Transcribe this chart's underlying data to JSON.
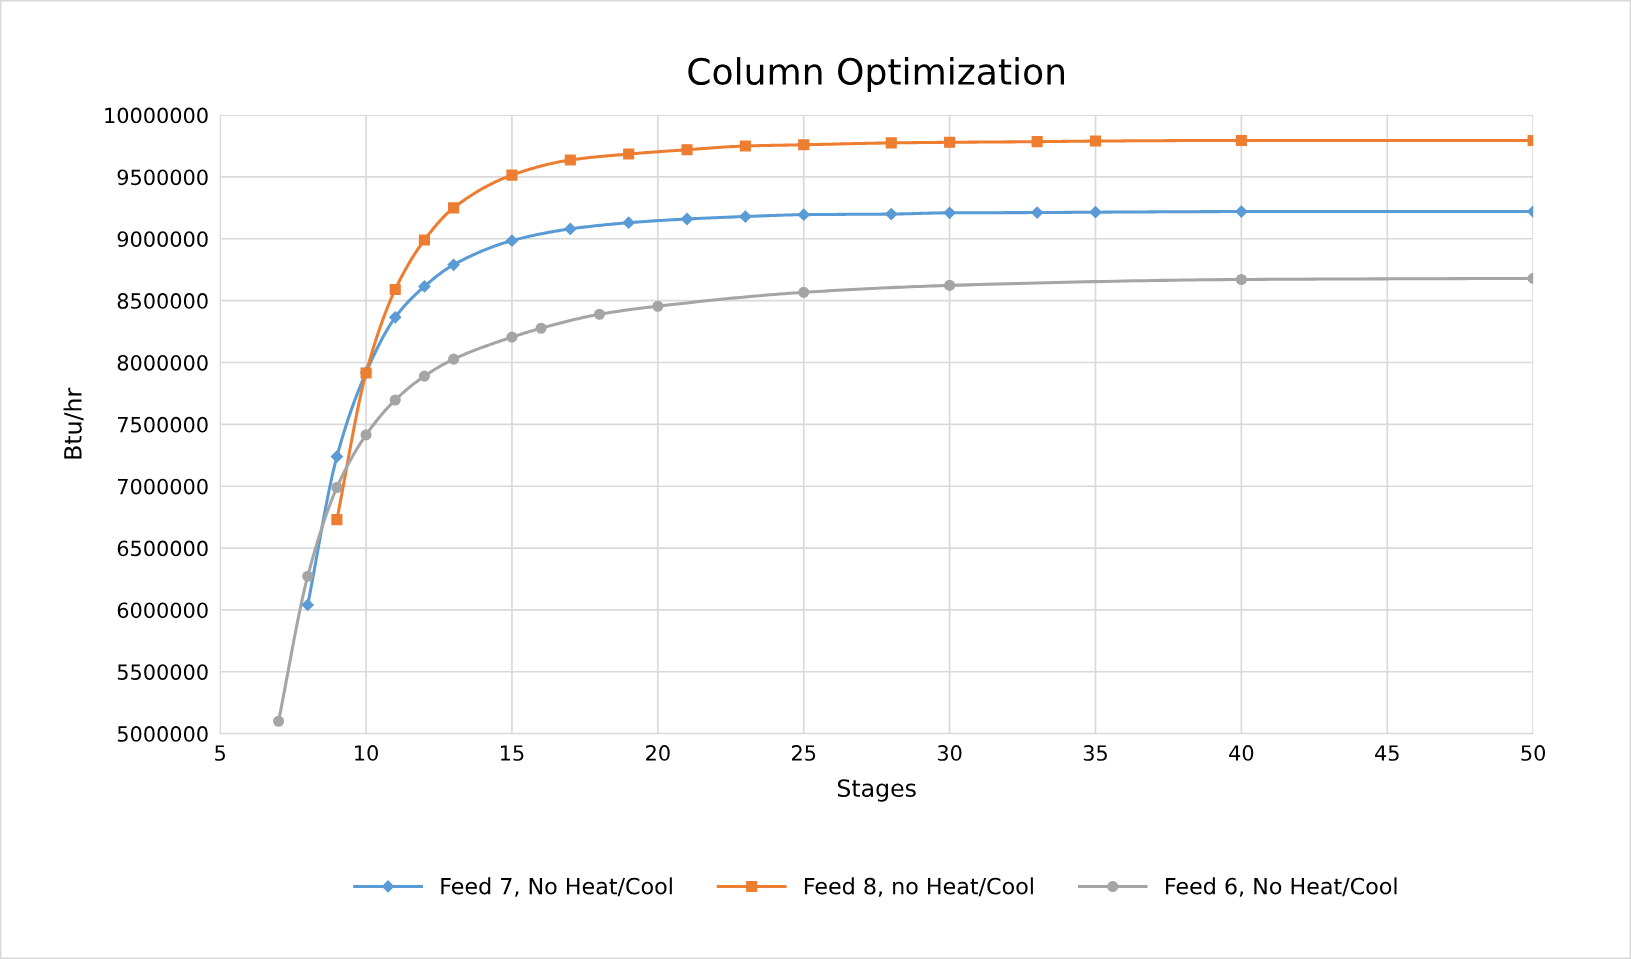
{
  "chart_data": {
    "type": "line",
    "title": "Column Optimization",
    "xlabel": "Stages",
    "ylabel": "Btu/hr",
    "xlim": [
      5,
      50
    ],
    "xticks": [
      5,
      10,
      15,
      20,
      25,
      30,
      35,
      40,
      45,
      50
    ],
    "ylim": [
      5000000,
      10000000
    ],
    "yticks": [
      5000000,
      5500000,
      6000000,
      6500000,
      7000000,
      7500000,
      8000000,
      8500000,
      9000000,
      9500000,
      10000000
    ],
    "grid": true,
    "legend": "bottom",
    "line_style": "solid",
    "series": [
      {
        "name": "Feed 7, No Heat/Cool",
        "color": "#5b9bd5",
        "marker": "diamond",
        "x": [
          8,
          9,
          10,
          11,
          12,
          13,
          15,
          17,
          19,
          21,
          23,
          25,
          28,
          30,
          33,
          35,
          40,
          50
        ],
        "values": [
          6040000,
          7240000,
          7920000,
          8365000,
          8615000,
          8790000,
          8985000,
          9080000,
          9130000,
          9160000,
          9180000,
          9195000,
          9200000,
          9210000,
          9212000,
          9215000,
          9220000,
          9220000
        ]
      },
      {
        "name": "Feed 8, no Heat/Cool",
        "color": "#ed7d31",
        "marker": "square",
        "x": [
          9,
          10,
          11,
          12,
          13,
          15,
          17,
          19,
          21,
          23,
          25,
          28,
          30,
          33,
          35,
          40,
          50
        ],
        "values": [
          6730000,
          7915000,
          8590000,
          8990000,
          9250000,
          9515000,
          9637000,
          9685000,
          9720000,
          9750000,
          9760000,
          9775000,
          9780000,
          9785000,
          9790000,
          9795000,
          9795000
        ]
      },
      {
        "name": "Feed 6, No Heat/Cool",
        "color": "#a5a5a5",
        "marker": "circle",
        "x": [
          7,
          8,
          9,
          10,
          11,
          12,
          13,
          15,
          16,
          18,
          20,
          25,
          30,
          40,
          50
        ],
        "values": [
          5100000,
          6272000,
          6990000,
          7415000,
          7697000,
          7890000,
          8027000,
          8205000,
          8277000,
          8390000,
          8455000,
          8567000,
          8623000,
          8671000,
          8680000
        ]
      }
    ]
  }
}
